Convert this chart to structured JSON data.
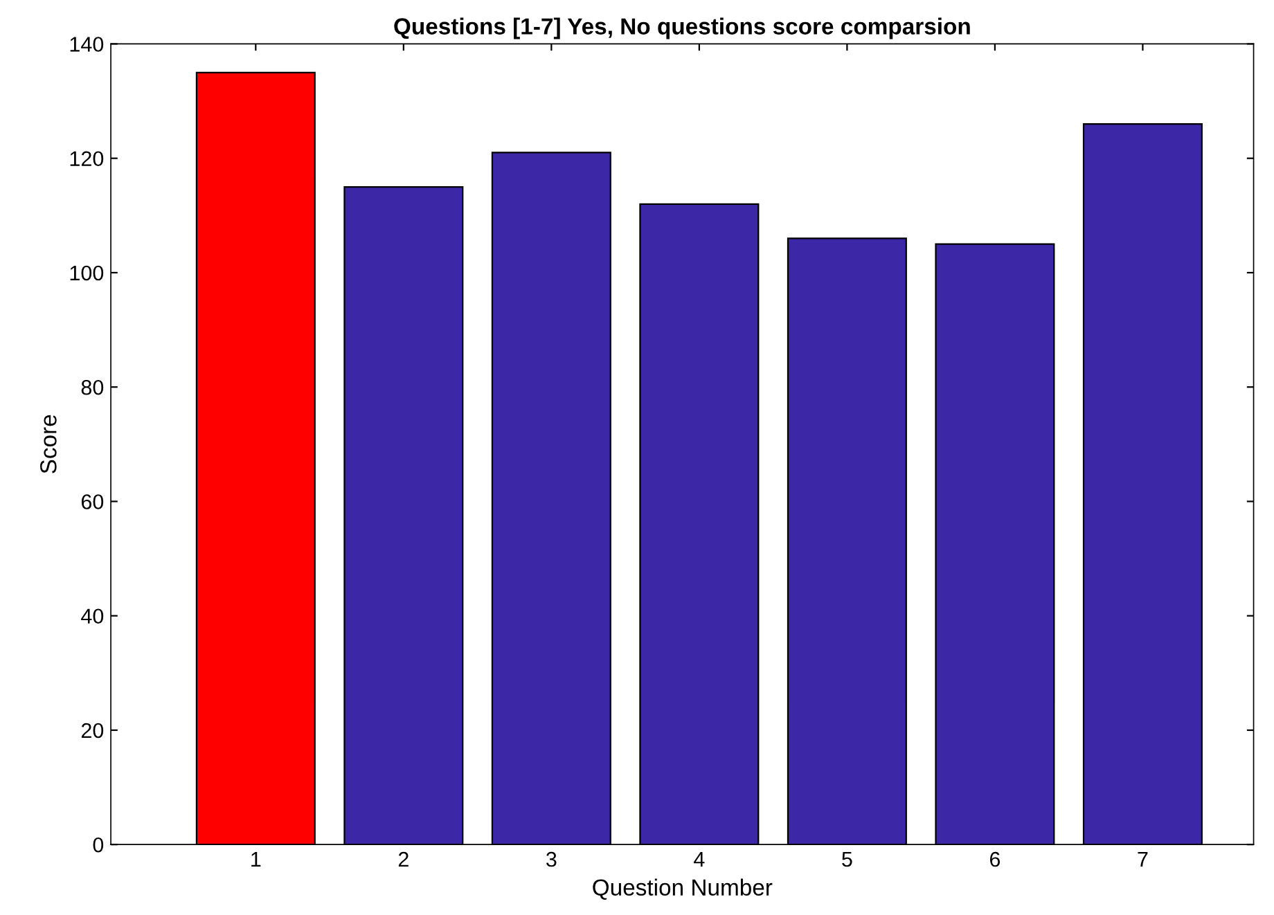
{
  "chart_data": {
    "type": "bar",
    "title": "Questions [1-7] Yes, No questions score comparsion",
    "xlabel": "Question Number",
    "ylabel": "Score",
    "categories": [
      "1",
      "2",
      "3",
      "4",
      "5",
      "6",
      "7"
    ],
    "values": [
      135,
      115,
      121,
      112,
      106,
      105,
      126
    ],
    "colors": [
      "#ff0000",
      "#3c28a6",
      "#3c28a6",
      "#3c28a6",
      "#3c28a6",
      "#3c28a6",
      "#3c28a6"
    ],
    "ylim": [
      0,
      140
    ],
    "yticks": [
      0,
      20,
      40,
      60,
      80,
      100,
      120,
      140
    ],
    "grid": false,
    "legend": false
  }
}
